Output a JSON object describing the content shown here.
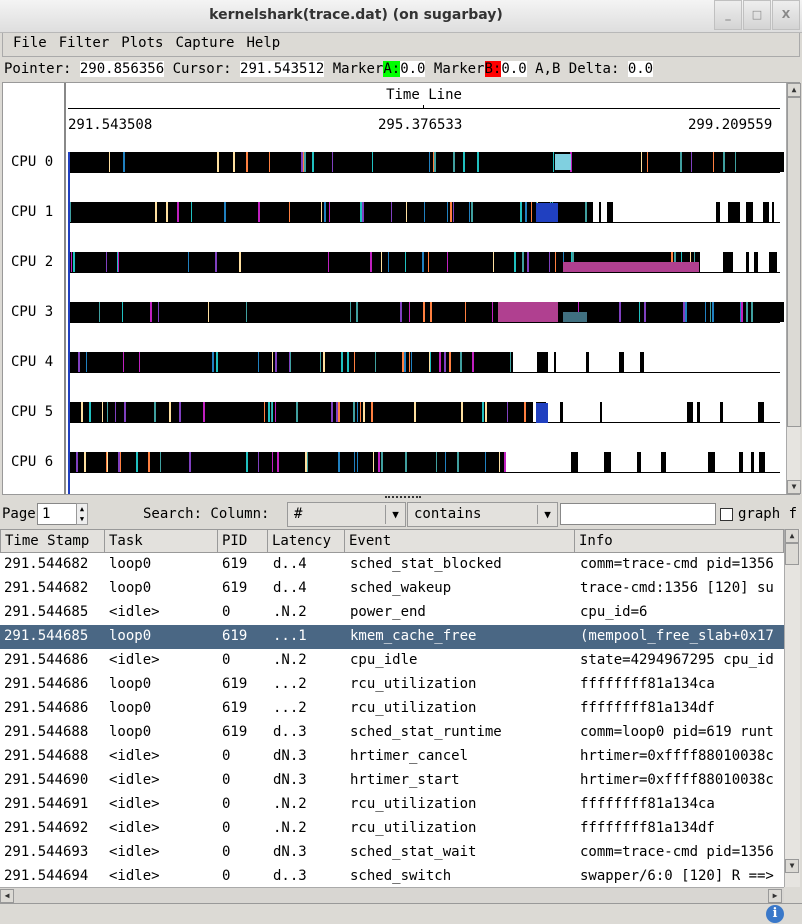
{
  "window": {
    "title": "kernelshark(trace.dat) (on sugarbay)",
    "minimize": "_",
    "maximize": "□",
    "close": "X"
  },
  "menu": [
    "File",
    "Filter",
    "Plots",
    "Capture",
    "Help"
  ],
  "info": {
    "pointer_label": "Pointer: ",
    "pointer": "290.856356",
    "cursor_label": " Cursor: ",
    "cursor": "291.543512",
    "marker_label": " Marker",
    "marker_a": "A:",
    "marker_a_value": "0.0",
    "marker_b": "B:",
    "marker_b_value": "0.0",
    "delta_label": " A,B Delta: ",
    "delta": "0.0",
    "marker_a_color": "#00ff00",
    "marker_b_color": "#ff0000"
  },
  "graph": {
    "timeline_title": "Time Line",
    "ticks": [
      "291.543508",
      "295.376533",
      "299.209559"
    ],
    "cpus": [
      "CPU 0",
      "CPU 1",
      "CPU 2",
      "CPU 3",
      "CPU 4",
      "CPU 5",
      "CPU 6"
    ]
  },
  "search": {
    "page_label": "Page",
    "page": "1",
    "search_label": "Search: Column:",
    "column": "#",
    "op": "contains",
    "query": "",
    "graph_label": "graph f"
  },
  "table": {
    "columns": [
      "Time Stamp",
      "Task",
      "PID",
      "Latency",
      "Event",
      "Info"
    ],
    "selected_row": 3,
    "rows": [
      [
        "291.544682",
        "loop0",
        "619",
        "d..4",
        "sched_stat_blocked",
        "comm=trace-cmd pid=1356"
      ],
      [
        "291.544682",
        "loop0",
        "619",
        "d..4",
        "sched_wakeup",
        "trace-cmd:1356 [120] su"
      ],
      [
        "291.544685",
        "<idle>",
        "0",
        ".N.2",
        "power_end",
        "cpu_id=6"
      ],
      [
        "291.544685",
        "loop0",
        "619",
        "...1",
        "kmem_cache_free",
        "(mempool_free_slab+0x17"
      ],
      [
        "291.544686",
        "<idle>",
        "0",
        ".N.2",
        "cpu_idle",
        "state=4294967295 cpu_id"
      ],
      [
        "291.544686",
        "loop0",
        "619",
        "...2",
        "rcu_utilization",
        "ffffffff81a134ca"
      ],
      [
        "291.544686",
        "loop0",
        "619",
        "...2",
        "rcu_utilization",
        "ffffffff81a134df"
      ],
      [
        "291.544688",
        "loop0",
        "619",
        "d..3",
        "sched_stat_runtime",
        "comm=loop0 pid=619 runt"
      ],
      [
        "291.544688",
        "<idle>",
        "0",
        "dN.3",
        "hrtimer_cancel",
        "hrtimer=0xffff88010038c"
      ],
      [
        "291.544690",
        "<idle>",
        "0",
        "dN.3",
        "hrtimer_start",
        "hrtimer=0xffff88010038c"
      ],
      [
        "291.544691",
        "<idle>",
        "0",
        ".N.2",
        "rcu_utilization",
        "ffffffff81a134ca"
      ],
      [
        "291.544692",
        "<idle>",
        "0",
        ".N.2",
        "rcu_utilization",
        "ffffffff81a134df"
      ],
      [
        "291.544693",
        "<idle>",
        "0",
        "dN.3",
        "sched_stat_wait",
        "comm=trace-cmd pid=1356"
      ],
      [
        "291.544694",
        "<idle>",
        "0",
        "d..3",
        "sched_switch",
        "swapper/6:0 [120] R ==>"
      ]
    ]
  },
  "status": {
    "icon": "info-icon"
  }
}
